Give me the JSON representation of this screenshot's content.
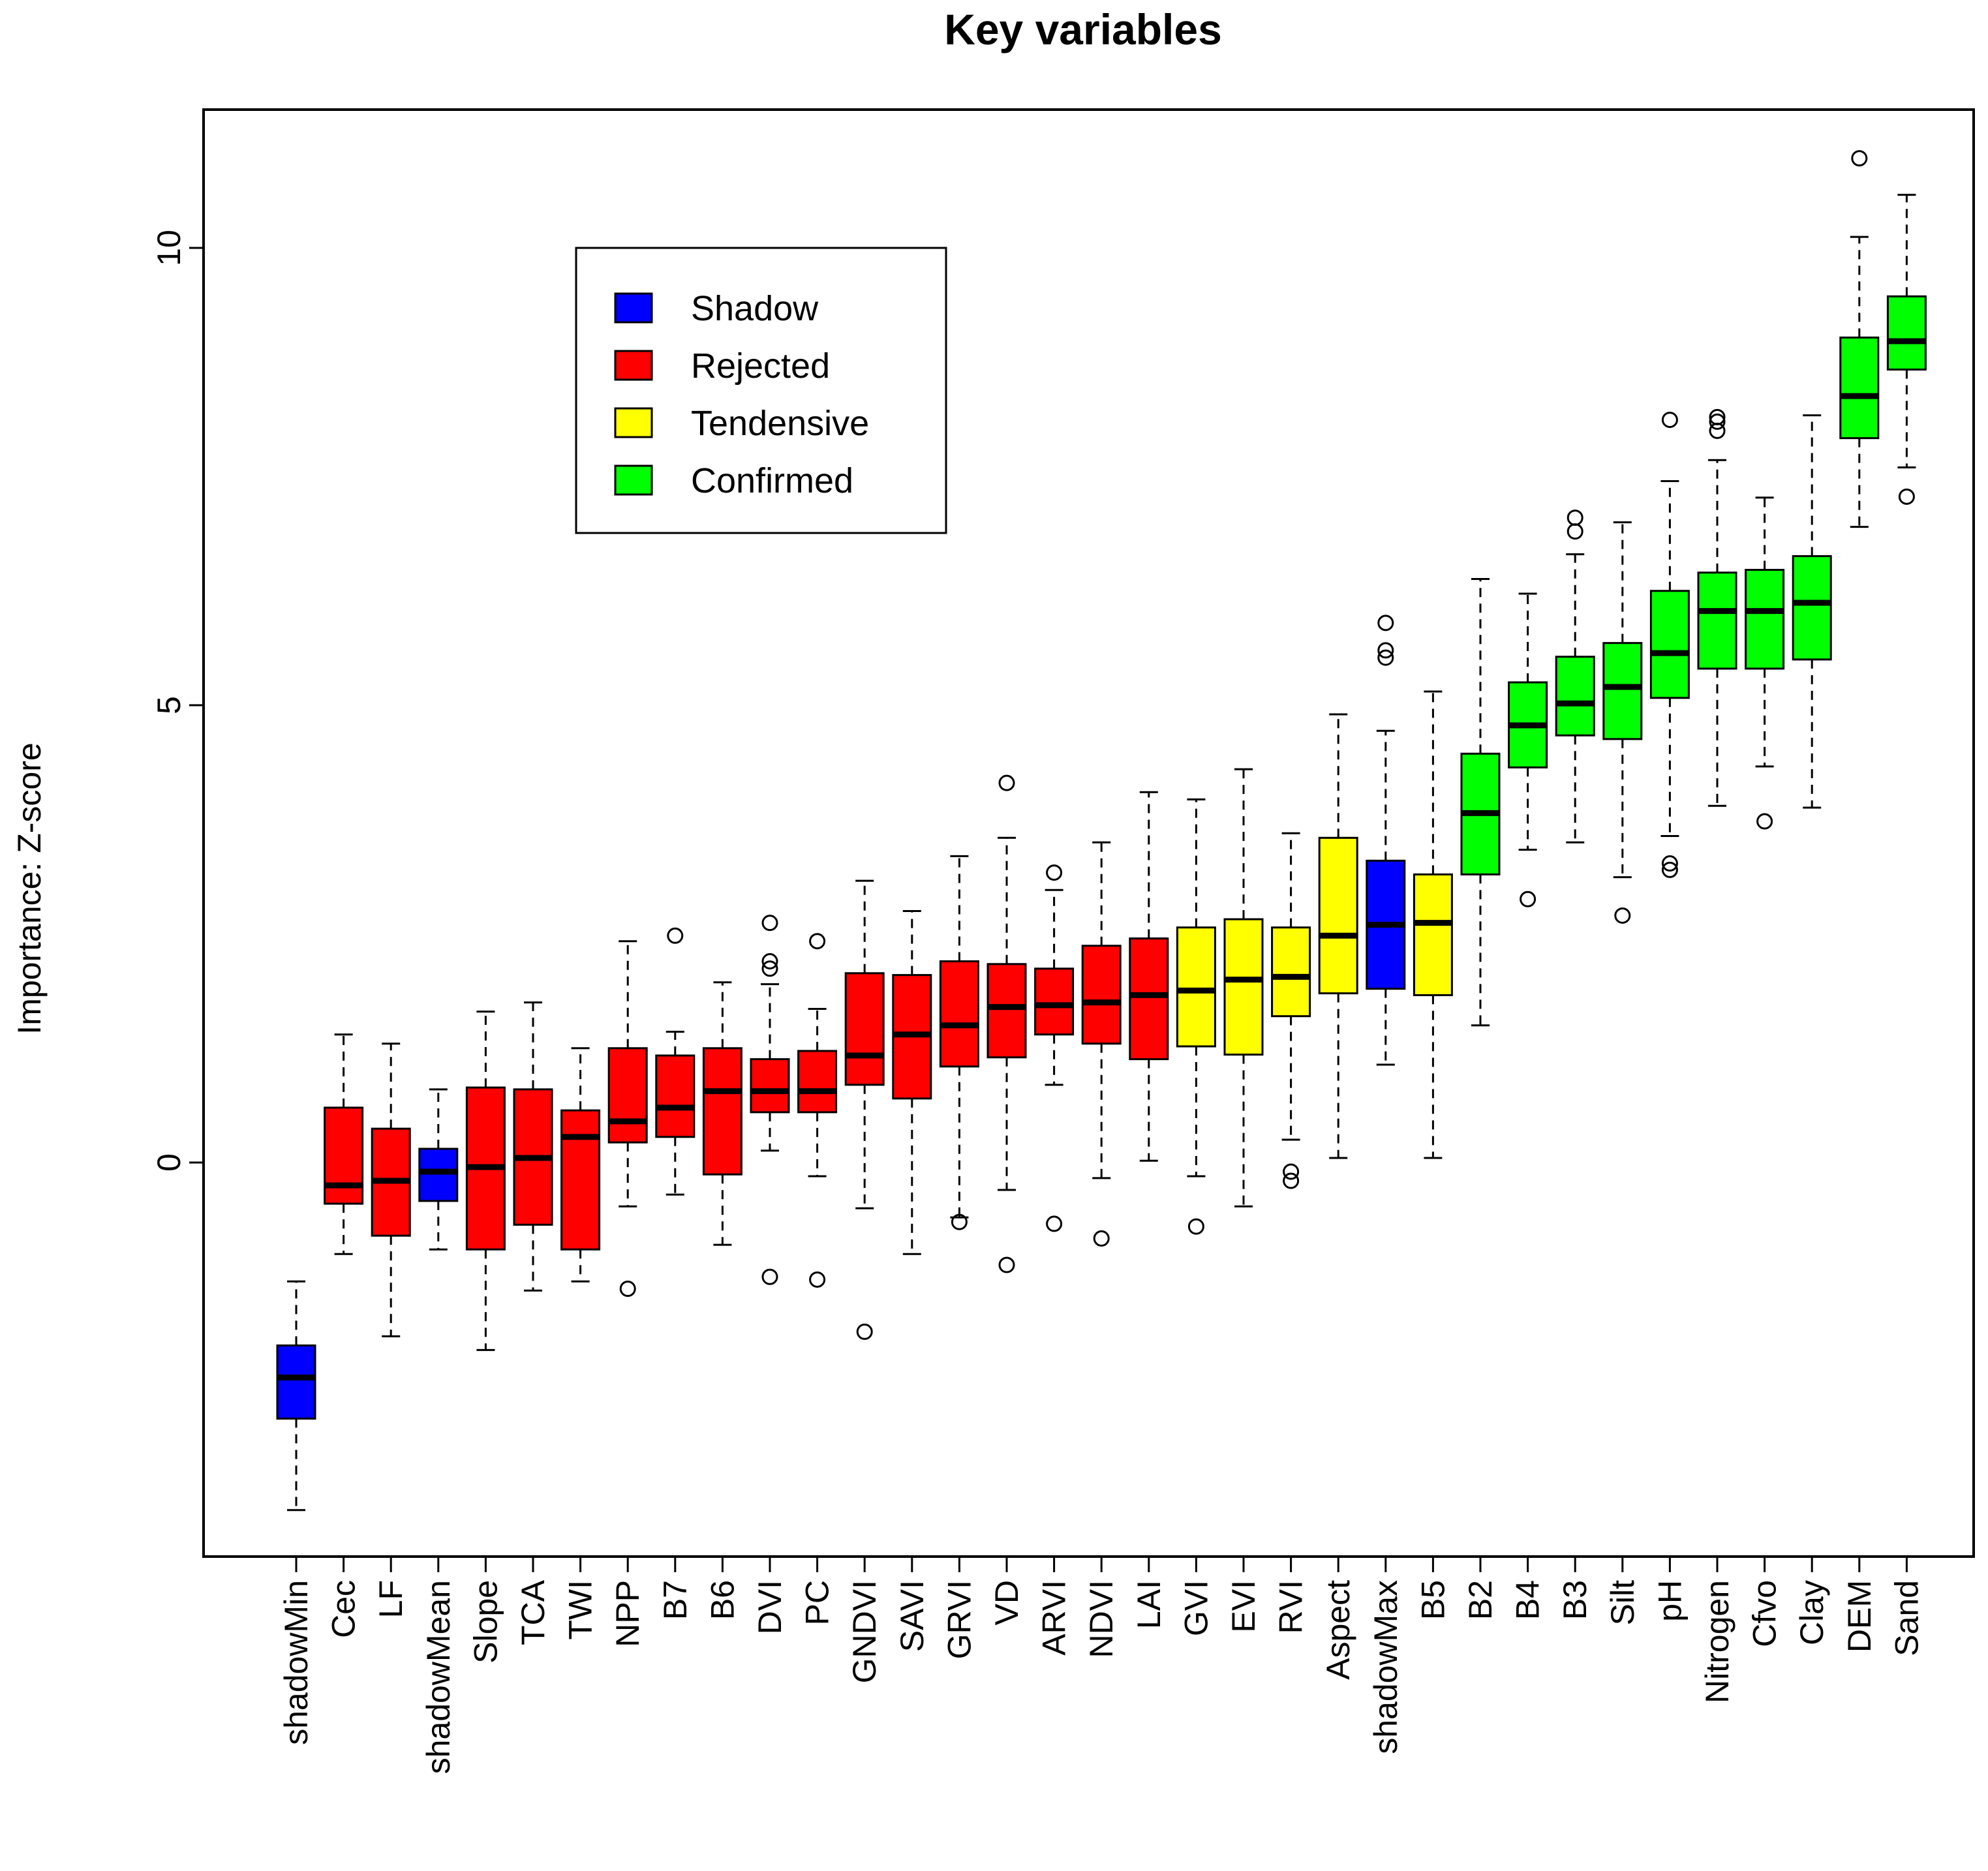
{
  "chart_data": {
    "type": "boxplot",
    "title": "Key variables",
    "xlabel": "",
    "ylabel": "Importance: Z-score",
    "ylim": [
      -4.5,
      11.5
    ],
    "yticks": [
      0,
      5,
      10
    ],
    "ytick_labels": [
      "0",
      "5",
      "10"
    ],
    "legend": {
      "position": "top-left",
      "entries": [
        {
          "label": "Shadow",
          "color": "#0000ff"
        },
        {
          "label": "Rejected",
          "color": "#ff0000"
        },
        {
          "label": "Tendensive",
          "color": "#ffff00"
        },
        {
          "label": "Confirmed",
          "color": "#00ff00"
        }
      ]
    },
    "colors": {
      "Shadow": "#0000ff",
      "Rejected": "#ff0000",
      "Tendensive": "#ffff00",
      "Confirmed": "#00ff00"
    },
    "boxes": [
      {
        "name": "shadowMin",
        "decision": "Shadow",
        "whisker_low": -3.8,
        "q1": -2.8,
        "median": -2.35,
        "q3": -2.0,
        "whisker_high": -1.3,
        "outliers": []
      },
      {
        "name": "Cec",
        "decision": "Rejected",
        "whisker_low": -1.0,
        "q1": -0.45,
        "median": -0.25,
        "q3": 0.6,
        "whisker_high": 1.4,
        "outliers": []
      },
      {
        "name": "LF",
        "decision": "Rejected",
        "whisker_low": -1.9,
        "q1": -0.8,
        "median": -0.2,
        "q3": 0.37,
        "whisker_high": 1.3,
        "outliers": []
      },
      {
        "name": "shadowMean",
        "decision": "Shadow",
        "whisker_low": -0.95,
        "q1": -0.42,
        "median": -0.1,
        "q3": 0.15,
        "whisker_high": 0.8,
        "outliers": []
      },
      {
        "name": "Slope",
        "decision": "Rejected",
        "whisker_low": -2.05,
        "q1": -0.95,
        "median": -0.05,
        "q3": 0.82,
        "whisker_high": 1.65,
        "outliers": []
      },
      {
        "name": "TCA",
        "decision": "Rejected",
        "whisker_low": -1.4,
        "q1": -0.68,
        "median": 0.05,
        "q3": 0.8,
        "whisker_high": 1.75,
        "outliers": []
      },
      {
        "name": "TWI",
        "decision": "Rejected",
        "whisker_low": -1.3,
        "q1": -0.95,
        "median": 0.28,
        "q3": 0.57,
        "whisker_high": 1.25,
        "outliers": []
      },
      {
        "name": "NPP",
        "decision": "Rejected",
        "whisker_low": -0.48,
        "q1": 0.22,
        "median": 0.45,
        "q3": 1.25,
        "whisker_high": 2.42,
        "outliers": [
          -1.38
        ]
      },
      {
        "name": "B7",
        "decision": "Rejected",
        "whisker_low": -0.35,
        "q1": 0.28,
        "median": 0.6,
        "q3": 1.17,
        "whisker_high": 1.43,
        "outliers": [
          2.48
        ]
      },
      {
        "name": "B6",
        "decision": "Rejected",
        "whisker_low": -0.9,
        "q1": -0.13,
        "median": 0.78,
        "q3": 1.25,
        "whisker_high": 1.97,
        "outliers": []
      },
      {
        "name": "DVI",
        "decision": "Rejected",
        "whisker_low": 0.13,
        "q1": 0.55,
        "median": 0.78,
        "q3": 1.13,
        "whisker_high": 1.95,
        "outliers": [
          2.62,
          2.2,
          2.12,
          -1.25
        ]
      },
      {
        "name": "PC",
        "decision": "Rejected",
        "whisker_low": -0.15,
        "q1": 0.55,
        "median": 0.78,
        "q3": 1.22,
        "whisker_high": 1.68,
        "outliers": [
          2.42,
          -1.28
        ]
      },
      {
        "name": "GNDVI",
        "decision": "Rejected",
        "whisker_low": -0.5,
        "q1": 0.85,
        "median": 1.17,
        "q3": 2.07,
        "whisker_high": 3.08,
        "outliers": [
          -1.85
        ]
      },
      {
        "name": "SAVI",
        "decision": "Rejected",
        "whisker_low": -1.0,
        "q1": 0.7,
        "median": 1.4,
        "q3": 2.05,
        "whisker_high": 2.75,
        "outliers": []
      },
      {
        "name": "GRVI",
        "decision": "Rejected",
        "whisker_low": -0.6,
        "q1": 1.05,
        "median": 1.5,
        "q3": 2.2,
        "whisker_high": 3.35,
        "outliers": [
          -0.65
        ]
      },
      {
        "name": "VD",
        "decision": "Rejected",
        "whisker_low": -0.3,
        "q1": 1.15,
        "median": 1.7,
        "q3": 2.17,
        "whisker_high": 3.55,
        "outliers": [
          4.15,
          -1.12
        ]
      },
      {
        "name": "ARVI",
        "decision": "Rejected",
        "whisker_low": 0.85,
        "q1": 1.4,
        "median": 1.72,
        "q3": 2.12,
        "whisker_high": 2.98,
        "outliers": [
          3.17,
          -0.67
        ]
      },
      {
        "name": "NDVI",
        "decision": "Rejected",
        "whisker_low": -0.17,
        "q1": 1.3,
        "median": 1.75,
        "q3": 2.37,
        "whisker_high": 3.5,
        "outliers": [
          -0.83
        ]
      },
      {
        "name": "LAI",
        "decision": "Rejected",
        "whisker_low": 0.02,
        "q1": 1.13,
        "median": 1.83,
        "q3": 2.45,
        "whisker_high": 4.05,
        "outliers": []
      },
      {
        "name": "GVI",
        "decision": "Tendensive",
        "whisker_low": -0.15,
        "q1": 1.27,
        "median": 1.88,
        "q3": 2.57,
        "whisker_high": 3.97,
        "outliers": [
          -0.7
        ]
      },
      {
        "name": "EVI",
        "decision": "Tendensive",
        "whisker_low": -0.48,
        "q1": 1.18,
        "median": 2.0,
        "q3": 2.66,
        "whisker_high": 4.3,
        "outliers": []
      },
      {
        "name": "RVI",
        "decision": "Tendensive",
        "whisker_low": 0.25,
        "q1": 1.6,
        "median": 2.03,
        "q3": 2.57,
        "whisker_high": 3.6,
        "outliers": [
          -0.1,
          -0.2
        ]
      },
      {
        "name": "Aspect",
        "decision": "Tendensive",
        "whisker_low": 0.05,
        "q1": 1.85,
        "median": 2.48,
        "q3": 3.55,
        "whisker_high": 4.9,
        "outliers": []
      },
      {
        "name": "shadowMax",
        "decision": "Shadow",
        "whisker_low": 1.07,
        "q1": 1.9,
        "median": 2.6,
        "q3": 3.3,
        "whisker_high": 4.72,
        "outliers": [
          5.9,
          5.6,
          5.52
        ]
      },
      {
        "name": "B5",
        "decision": "Tendensive",
        "whisker_low": 0.05,
        "q1": 1.83,
        "median": 2.62,
        "q3": 3.15,
        "whisker_high": 5.15,
        "outliers": []
      },
      {
        "name": "B2",
        "decision": "Confirmed",
        "whisker_low": 1.5,
        "q1": 3.15,
        "median": 3.82,
        "q3": 4.47,
        "whisker_high": 6.38,
        "outliers": []
      },
      {
        "name": "B4",
        "decision": "Confirmed",
        "whisker_low": 3.42,
        "q1": 4.32,
        "median": 4.78,
        "q3": 5.25,
        "whisker_high": 6.22,
        "outliers": [
          2.88
        ]
      },
      {
        "name": "B3",
        "decision": "Confirmed",
        "whisker_low": 3.5,
        "q1": 4.67,
        "median": 5.02,
        "q3": 5.53,
        "whisker_high": 6.65,
        "outliers": [
          7.05,
          6.9
        ]
      },
      {
        "name": "Silt",
        "decision": "Confirmed",
        "whisker_low": 3.12,
        "q1": 4.63,
        "median": 5.2,
        "q3": 5.68,
        "whisker_high": 7.0,
        "outliers": [
          2.7
        ]
      },
      {
        "name": "pH",
        "decision": "Confirmed",
        "whisker_low": 3.57,
        "q1": 5.08,
        "median": 5.57,
        "q3": 6.25,
        "whisker_high": 7.45,
        "outliers": [
          8.12,
          3.27,
          3.2
        ]
      },
      {
        "name": "Nitrogen",
        "decision": "Confirmed",
        "whisker_low": 3.9,
        "q1": 5.4,
        "median": 6.03,
        "q3": 6.45,
        "whisker_high": 7.68,
        "outliers": [
          8.15,
          8.1,
          8.0
        ]
      },
      {
        "name": "Cfvo",
        "decision": "Confirmed",
        "whisker_low": 4.33,
        "q1": 5.4,
        "median": 6.03,
        "q3": 6.48,
        "whisker_high": 7.27,
        "outliers": [
          3.73
        ]
      },
      {
        "name": "Clay",
        "decision": "Confirmed",
        "whisker_low": 3.88,
        "q1": 5.5,
        "median": 6.12,
        "q3": 6.63,
        "whisker_high": 8.17,
        "outliers": []
      },
      {
        "name": "DEM",
        "decision": "Confirmed",
        "whisker_low": 6.95,
        "q1": 7.92,
        "median": 8.38,
        "q3": 9.02,
        "whisker_high": 10.12,
        "outliers": [
          10.98
        ]
      },
      {
        "name": "Sand",
        "decision": "Confirmed",
        "whisker_low": 7.6,
        "q1": 8.67,
        "median": 8.98,
        "q3": 9.47,
        "whisker_high": 10.58,
        "outliers": [
          7.28
        ]
      }
    ]
  }
}
